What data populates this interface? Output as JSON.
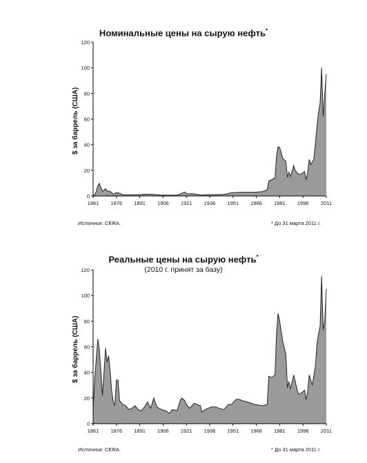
{
  "charts": [
    {
      "title": "Номинальные цены на сырую нефть",
      "title_mark": "*",
      "subtitle": "",
      "ylabel": "$ за баррель (США)",
      "source_label": "Источник:",
      "source_value": "CERA.",
      "footnote": "* До 31 марта 2011 г."
    },
    {
      "title": "Реальные цены на сырую нефть",
      "title_mark": "*",
      "subtitle": "(2010 г. принят за базу)",
      "ylabel": "$ за баррель (США)",
      "source_label": "Источник:",
      "source_value": "CERA.",
      "footnote": "* До 31 марта 2011 г."
    }
  ],
  "chart_data": [
    {
      "type": "area",
      "title": "Номинальные цены на сырую нефть",
      "xlabel": "",
      "ylabel": "$ за баррель (США)",
      "xlim": [
        1861,
        2011
      ],
      "ylim": [
        0,
        120
      ],
      "x_ticks": [
        1861,
        1876,
        1891,
        1906,
        1921,
        1936,
        1951,
        1966,
        1981,
        1996,
        2011
      ],
      "y_ticks": [
        0,
        20,
        40,
        60,
        80,
        100,
        120
      ],
      "grid": false,
      "fill_color": "#9a9a9a",
      "x": [
        1861,
        1862,
        1863,
        1864,
        1865,
        1866,
        1867,
        1868,
        1869,
        1870,
        1872,
        1874,
        1876,
        1878,
        1880,
        1885,
        1890,
        1895,
        1900,
        1905,
        1910,
        1915,
        1918,
        1920,
        1921,
        1925,
        1931,
        1935,
        1940,
        1945,
        1948,
        1950,
        1955,
        1960,
        1965,
        1970,
        1973,
        1974,
        1975,
        1978,
        1979,
        1980,
        1981,
        1982,
        1983,
        1985,
        1986,
        1987,
        1988,
        1990,
        1991,
        1993,
        1995,
        1997,
        1998,
        1999,
        2000,
        2001,
        2003,
        2005,
        2006,
        2007,
        2008,
        2009,
        2010,
        2011
      ],
      "values": [
        0.5,
        1.1,
        3.2,
        8.1,
        9.8,
        6.5,
        3.7,
        4.4,
        5.8,
        3.9,
        3.6,
        1.2,
        2.6,
        2.1,
        1.0,
        0.9,
        0.9,
        1.4,
        1.2,
        0.6,
        0.6,
        0.6,
        2.0,
        3.1,
        1.7,
        1.7,
        0.7,
        1.0,
        1.0,
        1.2,
        1.9,
        2.6,
        2.8,
        2.9,
        2.9,
        3.4,
        4.8,
        11.6,
        12.2,
        14.0,
        31.6,
        38.5,
        37.8,
        33.5,
        29.4,
        27.0,
        14.4,
        18.5,
        15.0,
        23.7,
        20.0,
        17.0,
        17.1,
        19.1,
        12.7,
        17.9,
        28.6,
        24.5,
        28.8,
        54.5,
        65.1,
        72.4,
        100.0,
        61.9,
        79.5,
        95.0
      ]
    },
    {
      "type": "area",
      "title": "Реальные цены на сырую нефть",
      "subtitle": "(2010 г. принят за базу)",
      "xlabel": "",
      "ylabel": "$ за баррель (США)",
      "xlim": [
        1861,
        2011
      ],
      "ylim": [
        0,
        120
      ],
      "x_ticks": [
        1861,
        1876,
        1891,
        1906,
        1921,
        1936,
        1951,
        1966,
        1981,
        1996,
        2011
      ],
      "y_ticks": [
        0,
        20,
        40,
        60,
        80,
        100,
        120
      ],
      "grid": false,
      "fill_color": "#9a9a9a",
      "x": [
        1861,
        1862,
        1863,
        1864,
        1865,
        1866,
        1867,
        1868,
        1869,
        1870,
        1871,
        1872,
        1873,
        1874,
        1875,
        1876,
        1877,
        1878,
        1880,
        1882,
        1884,
        1886,
        1888,
        1890,
        1892,
        1894,
        1896,
        1898,
        1900,
        1902,
        1905,
        1908,
        1910,
        1912,
        1915,
        1917,
        1918,
        1920,
        1921,
        1923,
        1926,
        1930,
        1931,
        1933,
        1937,
        1940,
        1942,
        1945,
        1948,
        1950,
        1953,
        1955,
        1957,
        1960,
        1965,
        1970,
        1973,
        1974,
        1976,
        1978,
        1979,
        1980,
        1981,
        1983,
        1985,
        1986,
        1987,
        1988,
        1990,
        1993,
        1995,
        1997,
        1998,
        1999,
        2000,
        2002,
        2004,
        2005,
        2006,
        2007,
        2008,
        2009,
        2010,
        2011
      ],
      "values": [
        12,
        35,
        50,
        66,
        58,
        40,
        22,
        40,
        59,
        48,
        53,
        40,
        25,
        17,
        14,
        34,
        34,
        18,
        15,
        14,
        11,
        12,
        14,
        11,
        10,
        13,
        17,
        12,
        20,
        13,
        11,
        10,
        8,
        11,
        10,
        18,
        20,
        18,
        15,
        12,
        16,
        14,
        9,
        11,
        13,
        13,
        12,
        11,
        15,
        15,
        19,
        19,
        18,
        17,
        15,
        14,
        15,
        37,
        36,
        38,
        71,
        86,
        80,
        64,
        54,
        28,
        33,
        27,
        38,
        23,
        24,
        26,
        19,
        25,
        38,
        30,
        45,
        62,
        70,
        76,
        115,
        73,
        80,
        105
      ]
    }
  ]
}
